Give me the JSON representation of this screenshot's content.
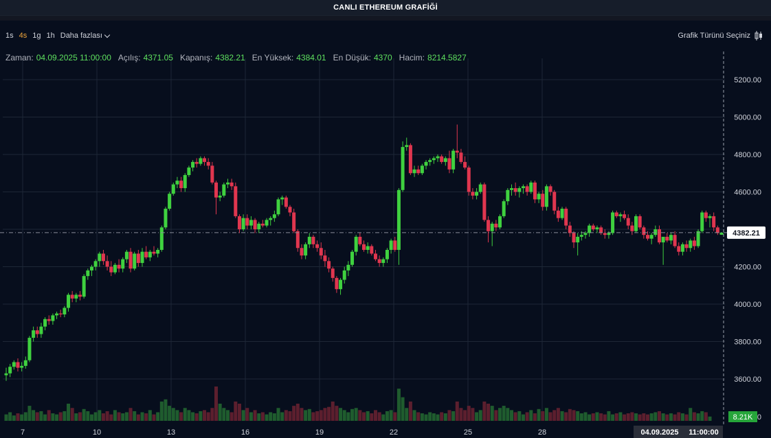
{
  "title": "CANLI ETHEREUM GRAFİĞİ",
  "toolbar": {
    "timeframes": [
      "1s",
      "4s",
      "1g",
      "1h"
    ],
    "active_timeframe": "4s",
    "more_label": "Daha fazlası",
    "chart_type_label": "Grafik Türünü Seçiniz"
  },
  "legend": {
    "time_label": "Zaman:",
    "time_value": "04.09.2025 11:00:00",
    "open_label": "Açılış:",
    "open_value": "4371.05",
    "close_label": "Kapanış:",
    "close_value": "4382.21",
    "high_label": "En Yüksek:",
    "high_value": "4384.01",
    "low_label": "En Düşük:",
    "low_value": "4370",
    "volume_label": "Hacim:",
    "volume_value": "8214.5827"
  },
  "colors": {
    "up": "#3fd13f",
    "down": "#e0364f",
    "volume_up": "#1f5c2e",
    "volume_down": "#5c1f2e",
    "grid": "#1e2736",
    "background": "#070e1d",
    "current_price_badge": "#ffffff",
    "volume_badge": "#26a53a"
  },
  "chart_data": {
    "type": "candlestick",
    "title": "",
    "ylim": [
      3500,
      5300
    ],
    "y_ticks": [
      "3600.00",
      "3800.00",
      "4000.00",
      "4200.00",
      "4400.00",
      "4600.00",
      "4800.00",
      "5000.00",
      "5200.00"
    ],
    "x_tick_labels": [
      "7",
      "10",
      "13",
      "16",
      "19",
      "22",
      "25",
      "28"
    ],
    "current_price_label": "4382.21",
    "volume_label": "8.21K",
    "volume_axis_label": "0",
    "crosshair_date": "04.09.2025",
    "crosshair_time": "11:00:00",
    "grid": true,
    "ohlc": [
      [
        3620,
        3660,
        3590,
        3630
      ],
      [
        3630,
        3680,
        3610,
        3665
      ],
      [
        3665,
        3700,
        3650,
        3690
      ],
      [
        3690,
        3710,
        3640,
        3660
      ],
      [
        3660,
        3690,
        3640,
        3670
      ],
      [
        3670,
        3720,
        3655,
        3700
      ],
      [
        3700,
        3830,
        3690,
        3820
      ],
      [
        3820,
        3880,
        3800,
        3860
      ],
      [
        3860,
        3880,
        3820,
        3840
      ],
      [
        3840,
        3900,
        3820,
        3880
      ],
      [
        3880,
        3930,
        3860,
        3920
      ],
      [
        3920,
        3940,
        3890,
        3910
      ],
      [
        3910,
        3950,
        3890,
        3940
      ],
      [
        3940,
        3960,
        3920,
        3950
      ],
      [
        3950,
        3970,
        3930,
        3945
      ],
      [
        3945,
        3990,
        3930,
        3980
      ],
      [
        3980,
        4060,
        3960,
        4050
      ],
      [
        4050,
        4070,
        4010,
        4030
      ],
      [
        4030,
        4060,
        4010,
        4050
      ],
      [
        4050,
        4070,
        4020,
        4040
      ],
      [
        4040,
        4160,
        4030,
        4150
      ],
      [
        4150,
        4190,
        4130,
        4180
      ],
      [
        4180,
        4210,
        4150,
        4200
      ],
      [
        4200,
        4240,
        4180,
        4230
      ],
      [
        4230,
        4280,
        4200,
        4270
      ],
      [
        4270,
        4290,
        4210,
        4230
      ],
      [
        4230,
        4260,
        4180,
        4200
      ],
      [
        4200,
        4230,
        4150,
        4170
      ],
      [
        4170,
        4220,
        4160,
        4210
      ],
      [
        4210,
        4240,
        4170,
        4190
      ],
      [
        4190,
        4250,
        4170,
        4240
      ],
      [
        4240,
        4290,
        4220,
        4280
      ],
      [
        4280,
        4300,
        4170,
        4190
      ],
      [
        4190,
        4280,
        4180,
        4270
      ],
      [
        4270,
        4290,
        4200,
        4220
      ],
      [
        4220,
        4300,
        4200,
        4280
      ],
      [
        4280,
        4310,
        4240,
        4250
      ],
      [
        4250,
        4290,
        4230,
        4280
      ],
      [
        4280,
        4310,
        4260,
        4270
      ],
      [
        4270,
        4300,
        4250,
        4290
      ],
      [
        4290,
        4420,
        4280,
        4410
      ],
      [
        4410,
        4520,
        4400,
        4510
      ],
      [
        4510,
        4600,
        4500,
        4590
      ],
      [
        4590,
        4650,
        4580,
        4640
      ],
      [
        4640,
        4680,
        4620,
        4660
      ],
      [
        4660,
        4680,
        4600,
        4620
      ],
      [
        4620,
        4700,
        4600,
        4690
      ],
      [
        4690,
        4740,
        4680,
        4730
      ],
      [
        4730,
        4770,
        4710,
        4760
      ],
      [
        4760,
        4780,
        4730,
        4750
      ],
      [
        4750,
        4790,
        4740,
        4780
      ],
      [
        4780,
        4790,
        4740,
        4760
      ],
      [
        4760,
        4780,
        4720,
        4740
      ],
      [
        4740,
        4760,
        4640,
        4650
      ],
      [
        4650,
        4660,
        4480,
        4570
      ],
      [
        4570,
        4600,
        4550,
        4580
      ],
      [
        4580,
        4650,
        4570,
        4640
      ],
      [
        4640,
        4670,
        4620,
        4650
      ],
      [
        4650,
        4670,
        4610,
        4630
      ],
      [
        4630,
        4650,
        4460,
        4470
      ],
      [
        4470,
        4480,
        4380,
        4400
      ],
      [
        4400,
        4480,
        4390,
        4460
      ],
      [
        4460,
        4480,
        4400,
        4420
      ],
      [
        4420,
        4470,
        4400,
        4450
      ],
      [
        4450,
        4460,
        4380,
        4400
      ],
      [
        4400,
        4440,
        4380,
        4430
      ],
      [
        4430,
        4450,
        4410,
        4420
      ],
      [
        4420,
        4460,
        4410,
        4450
      ],
      [
        4450,
        4470,
        4420,
        4460
      ],
      [
        4460,
        4500,
        4440,
        4480
      ],
      [
        4480,
        4570,
        4470,
        4560
      ],
      [
        4560,
        4580,
        4530,
        4570
      ],
      [
        4570,
        4580,
        4510,
        4520
      ],
      [
        4520,
        4530,
        4470,
        4490
      ],
      [
        4490,
        4510,
        4380,
        4390
      ],
      [
        4390,
        4400,
        4280,
        4300
      ],
      [
        4300,
        4320,
        4240,
        4260
      ],
      [
        4260,
        4330,
        4240,
        4320
      ],
      [
        4320,
        4380,
        4300,
        4360
      ],
      [
        4360,
        4370,
        4300,
        4320
      ],
      [
        4320,
        4340,
        4280,
        4300
      ],
      [
        4300,
        4330,
        4240,
        4260
      ],
      [
        4260,
        4290,
        4200,
        4230
      ],
      [
        4230,
        4250,
        4170,
        4190
      ],
      [
        4190,
        4200,
        4120,
        4140
      ],
      [
        4140,
        4150,
        4060,
        4080
      ],
      [
        4080,
        4140,
        4050,
        4130
      ],
      [
        4130,
        4200,
        4110,
        4180
      ],
      [
        4180,
        4230,
        4150,
        4210
      ],
      [
        4210,
        4290,
        4200,
        4280
      ],
      [
        4280,
        4370,
        4260,
        4360
      ],
      [
        4360,
        4380,
        4310,
        4320
      ],
      [
        4320,
        4340,
        4280,
        4290
      ],
      [
        4290,
        4330,
        4270,
        4310
      ],
      [
        4310,
        4320,
        4260,
        4270
      ],
      [
        4270,
        4290,
        4230,
        4240
      ],
      [
        4240,
        4260,
        4200,
        4220
      ],
      [
        4220,
        4250,
        4200,
        4240
      ],
      [
        4240,
        4300,
        4220,
        4290
      ],
      [
        4290,
        4350,
        4270,
        4340
      ],
      [
        4340,
        4360,
        4280,
        4290
      ],
      [
        4290,
        4620,
        4210,
        4610
      ],
      [
        4610,
        4870,
        4600,
        4840
      ],
      [
        4840,
        4890,
        4820,
        4850
      ],
      [
        4850,
        4860,
        4690,
        4700
      ],
      [
        4700,
        4740,
        4680,
        4720
      ],
      [
        4720,
        4740,
        4690,
        4700
      ],
      [
        4700,
        4750,
        4690,
        4740
      ],
      [
        4740,
        4770,
        4720,
        4760
      ],
      [
        4760,
        4780,
        4740,
        4770
      ],
      [
        4770,
        4790,
        4750,
        4780
      ],
      [
        4780,
        4800,
        4760,
        4790
      ],
      [
        4790,
        4800,
        4750,
        4760
      ],
      [
        4760,
        4790,
        4740,
        4780
      ],
      [
        4780,
        4820,
        4700,
        4720
      ],
      [
        4720,
        4830,
        4700,
        4820
      ],
      [
        4820,
        4960,
        4780,
        4810
      ],
      [
        4810,
        4830,
        4750,
        4760
      ],
      [
        4760,
        4790,
        4720,
        4730
      ],
      [
        4730,
        4740,
        4580,
        4600
      ],
      [
        4600,
        4620,
        4560,
        4580
      ],
      [
        4580,
        4620,
        4560,
        4600
      ],
      [
        4600,
        4650,
        4590,
        4640
      ],
      [
        4640,
        4650,
        4440,
        4450
      ],
      [
        4450,
        4470,
        4330,
        4390
      ],
      [
        4390,
        4440,
        4310,
        4430
      ],
      [
        4430,
        4450,
        4390,
        4410
      ],
      [
        4410,
        4480,
        4400,
        4470
      ],
      [
        4470,
        4560,
        4460,
        4550
      ],
      [
        4550,
        4620,
        4530,
        4610
      ],
      [
        4610,
        4640,
        4580,
        4620
      ],
      [
        4620,
        4650,
        4580,
        4600
      ],
      [
        4600,
        4630,
        4570,
        4620
      ],
      [
        4620,
        4640,
        4590,
        4630
      ],
      [
        4630,
        4640,
        4580,
        4600
      ],
      [
        4600,
        4660,
        4590,
        4650
      ],
      [
        4650,
        4660,
        4540,
        4560
      ],
      [
        4560,
        4600,
        4540,
        4590
      ],
      [
        4590,
        4610,
        4500,
        4520
      ],
      [
        4520,
        4640,
        4500,
        4630
      ],
      [
        4630,
        4640,
        4580,
        4600
      ],
      [
        4600,
        4610,
        4480,
        4500
      ],
      [
        4500,
        4520,
        4440,
        4460
      ],
      [
        4460,
        4520,
        4450,
        4510
      ],
      [
        4510,
        4520,
        4400,
        4420
      ],
      [
        4420,
        4440,
        4360,
        4380
      ],
      [
        4380,
        4390,
        4300,
        4330
      ],
      [
        4330,
        4380,
        4260,
        4360
      ],
      [
        4360,
        4390,
        4340,
        4370
      ],
      [
        4370,
        4390,
        4350,
        4380
      ],
      [
        4380,
        4430,
        4360,
        4420
      ],
      [
        4420,
        4430,
        4390,
        4400
      ],
      [
        4400,
        4420,
        4380,
        4410
      ],
      [
        4410,
        4420,
        4370,
        4380
      ],
      [
        4380,
        4400,
        4350,
        4370
      ],
      [
        4370,
        4390,
        4350,
        4380
      ],
      [
        4380,
        4500,
        4370,
        4490
      ],
      [
        4490,
        4500,
        4460,
        4470
      ],
      [
        4470,
        4490,
        4440,
        4480
      ],
      [
        4480,
        4500,
        4450,
        4460
      ],
      [
        4460,
        4480,
        4400,
        4420
      ],
      [
        4420,
        4440,
        4370,
        4390
      ],
      [
        4390,
        4480,
        4380,
        4470
      ],
      [
        4470,
        4480,
        4400,
        4410
      ],
      [
        4410,
        4420,
        4350,
        4370
      ],
      [
        4370,
        4390,
        4340,
        4350
      ],
      [
        4350,
        4380,
        4320,
        4370
      ],
      [
        4370,
        4420,
        4360,
        4400
      ],
      [
        4400,
        4420,
        4320,
        4330
      ],
      [
        4330,
        4350,
        4210,
        4360
      ],
      [
        4360,
        4380,
        4330,
        4340
      ],
      [
        4340,
        4380,
        4320,
        4370
      ],
      [
        4370,
        4390,
        4300,
        4310
      ],
      [
        4310,
        4330,
        4260,
        4280
      ],
      [
        4280,
        4330,
        4260,
        4320
      ],
      [
        4320,
        4340,
        4280,
        4300
      ],
      [
        4300,
        4350,
        4280,
        4340
      ],
      [
        4340,
        4360,
        4290,
        4310
      ],
      [
        4310,
        4400,
        4300,
        4390
      ],
      [
        4390,
        4500,
        4380,
        4490
      ],
      [
        4490,
        4500,
        4440,
        4460
      ],
      [
        4460,
        4480,
        4410,
        4470
      ],
      [
        4470,
        4490,
        4390,
        4410
      ],
      [
        4410,
        4420,
        4370,
        4380
      ],
      [
        4371.05,
        4384.01,
        4370,
        4382.21
      ]
    ],
    "volume": [
      0.3,
      0.4,
      0.25,
      0.35,
      0.3,
      0.4,
      0.7,
      0.5,
      0.4,
      0.45,
      0.3,
      0.5,
      0.35,
      0.3,
      0.4,
      0.45,
      0.8,
      0.6,
      0.35,
      0.4,
      0.55,
      0.45,
      0.3,
      0.4,
      0.5,
      0.35,
      0.45,
      0.3,
      0.5,
      0.4,
      0.35,
      0.4,
      0.6,
      0.45,
      0.3,
      0.4,
      0.35,
      0.5,
      0.3,
      0.4,
      0.9,
      1.0,
      0.7,
      0.6,
      0.5,
      0.4,
      0.6,
      0.5,
      0.4,
      0.35,
      0.45,
      0.5,
      0.4,
      0.6,
      1.6,
      0.8,
      0.6,
      0.5,
      0.4,
      0.9,
      0.8,
      0.5,
      0.6,
      0.4,
      0.5,
      0.35,
      0.4,
      0.3,
      0.4,
      0.35,
      0.6,
      0.4,
      0.5,
      0.45,
      0.7,
      0.8,
      0.6,
      0.5,
      0.55,
      0.4,
      0.45,
      0.5,
      0.6,
      0.65,
      0.9,
      0.7,
      0.6,
      0.5,
      0.4,
      0.55,
      0.6,
      0.5,
      0.4,
      0.45,
      0.35,
      0.5,
      0.4,
      0.3,
      0.45,
      0.5,
      0.4,
      1.5,
      1.1,
      0.6,
      0.9,
      0.5,
      0.4,
      0.35,
      0.3,
      0.4,
      0.35,
      0.3,
      0.4,
      0.35,
      0.5,
      0.45,
      0.9,
      0.6,
      0.5,
      0.7,
      0.6,
      0.4,
      0.5,
      0.9,
      0.8,
      0.7,
      0.5,
      0.6,
      0.7,
      0.6,
      0.5,
      0.4,
      0.45,
      0.3,
      0.4,
      0.5,
      0.35,
      0.55,
      0.45,
      0.6,
      0.4,
      0.5,
      0.6,
      0.45,
      0.4,
      0.55,
      0.5,
      0.45,
      0.35,
      0.4,
      0.3,
      0.35,
      0.4,
      0.35,
      0.3,
      0.45,
      0.3,
      0.35,
      0.4,
      0.3,
      0.35,
      0.4,
      0.35,
      0.3,
      0.35,
      0.3,
      0.35,
      0.4,
      0.45,
      0.35,
      0.3,
      0.35,
      0.3,
      0.4,
      0.35,
      0.3,
      0.6,
      0.4,
      0.35,
      0.45,
      0.4,
      0.2
    ]
  }
}
